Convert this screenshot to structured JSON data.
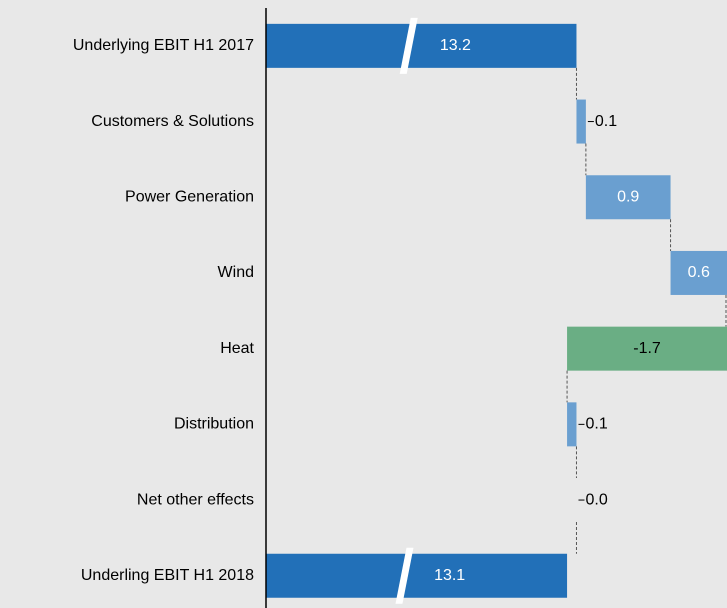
{
  "chart_data": {
    "type": "waterfall",
    "categories": [
      "Underlying EBIT H1 2017",
      "Customers & Solutions",
      "Power Generation",
      "Wind",
      "Heat",
      "Distribution",
      "Net other effects",
      "Underling EBIT H1 2018"
    ],
    "values": [
      13.2,
      0.1,
      0.9,
      0.6,
      -1.7,
      0.1,
      0.0,
      13.1
    ],
    "value_labels": [
      "13.2",
      "0.1",
      "0.9",
      "0.6",
      "-1.7",
      "0.1",
      "0.0",
      "13.1"
    ],
    "totals": [
      true,
      false,
      false,
      false,
      false,
      false,
      false,
      true
    ],
    "colors": [
      "#2270b8",
      "#6a9fd0",
      "#6a9fd0",
      "#6a9fd0",
      "#6aae84",
      "#6a9fd0",
      "#6a9fd0",
      "#2270b8"
    ],
    "xlim": [
      9.9,
      14.8
    ]
  }
}
